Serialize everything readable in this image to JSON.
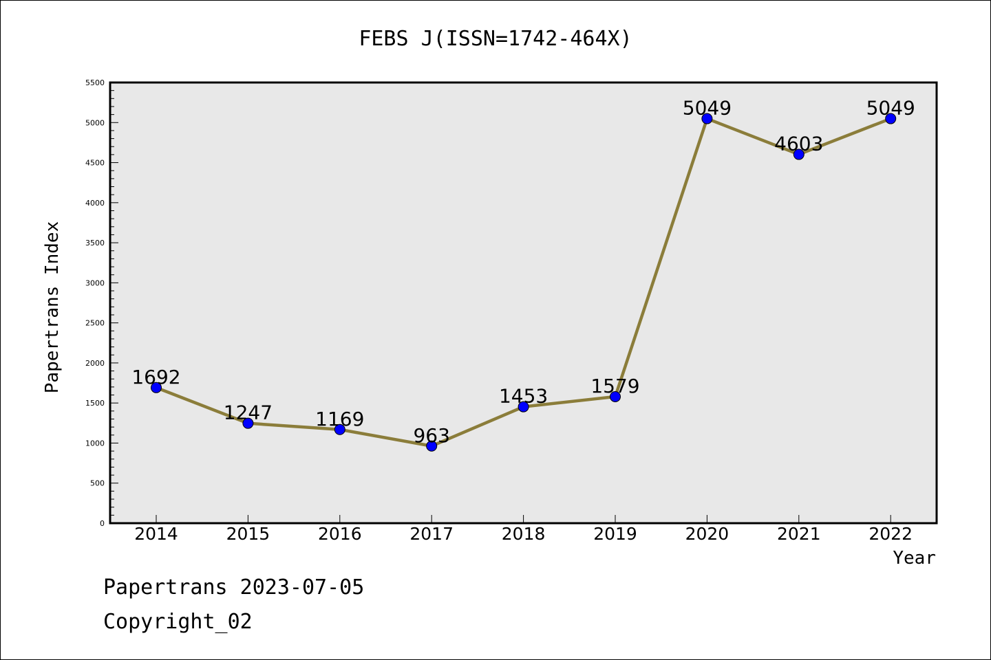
{
  "chart_data": {
    "type": "line",
    "title": "FEBS J(ISSN=1742-464X)",
    "xlabel": "Year",
    "ylabel": "Papertrans Index",
    "categories": [
      "2014",
      "2015",
      "2016",
      "2017",
      "2018",
      "2019",
      "2020",
      "2021",
      "2022"
    ],
    "series": [
      {
        "values": [
          1692,
          1247,
          1169,
          963,
          1453,
          1579,
          5049,
          4603,
          5049
        ],
        "labels": [
          "1692",
          "1247",
          "1169",
          "963",
          "1453",
          "1579",
          "5049",
          "4603",
          "5049"
        ]
      }
    ],
    "ylim": [
      0,
      5500
    ],
    "yticks": [
      "0",
      "500",
      "1000",
      "1500",
      "2000",
      "2500",
      "3000",
      "3500",
      "4000",
      "4500",
      "5000",
      "5500"
    ],
    "grid": false,
    "colors": {
      "line": "#8b7d3a",
      "marker": "#0000ff",
      "plot_background": "#e8e8e8"
    }
  },
  "footer": {
    "line1": "Papertrans 2023-07-05",
    "line2": "Copyright_02"
  }
}
